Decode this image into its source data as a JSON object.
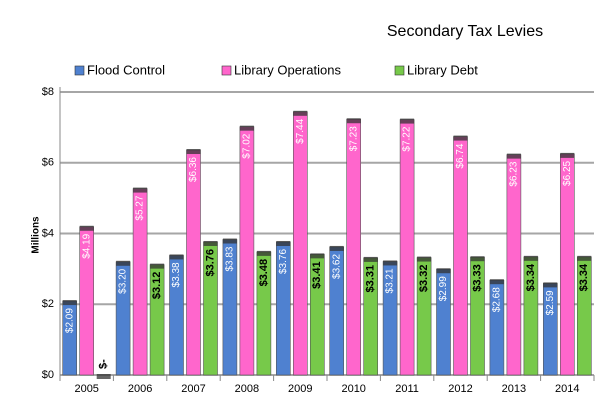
{
  "chart_data": {
    "type": "bar",
    "title": "Secondary Tax Levies",
    "y_label": "Millions",
    "categories": [
      "2005",
      "2006",
      "2007",
      "2008",
      "2009",
      "2010",
      "2011",
      "2012",
      "2013",
      "2014"
    ],
    "series": [
      {
        "name": "Flood Control",
        "color": "#4f81d0",
        "values": [
          2.09,
          3.2,
          3.38,
          3.83,
          3.76,
          3.62,
          3.21,
          2.99,
          2.68,
          2.59
        ],
        "value_labels": [
          "$2.09",
          "$3.20",
          "$3.38",
          "$3.83",
          "$3.76",
          "$3.62",
          "$3.21",
          "$2.99",
          "$2.68",
          "$2.59"
        ]
      },
      {
        "name": "Library Operations",
        "color": "#ff66cc",
        "values": [
          4.19,
          5.27,
          6.36,
          7.02,
          7.44,
          7.23,
          7.22,
          6.74,
          6.23,
          6.25
        ],
        "value_labels": [
          "$4.19",
          "$5.27",
          "$6.36",
          "$7.02",
          "$7.44",
          "$7.23",
          "$7.22",
          "$6.74",
          "$6.23",
          "$6.25"
        ]
      },
      {
        "name": "Library Debt",
        "color": "#77c94a",
        "values": [
          0,
          3.12,
          3.76,
          3.48,
          3.41,
          3.31,
          3.32,
          3.33,
          3.34,
          3.34
        ],
        "value_labels": [
          "$-",
          "$3.12",
          "$3.76",
          "$3.48",
          "$3.41",
          "$3.31",
          "$3.32",
          "$3.33",
          "$3.34",
          "$3.34"
        ]
      }
    ],
    "ylim": [
      0,
      8
    ],
    "yticks": [
      {
        "value": 0,
        "label": "$0"
      },
      {
        "value": 2,
        "label": "$2"
      },
      {
        "value": 4,
        "label": "$4"
      },
      {
        "value": 6,
        "label": "$6"
      },
      {
        "value": 8,
        "label": "$8"
      }
    ],
    "grid": true,
    "legend": "top"
  }
}
